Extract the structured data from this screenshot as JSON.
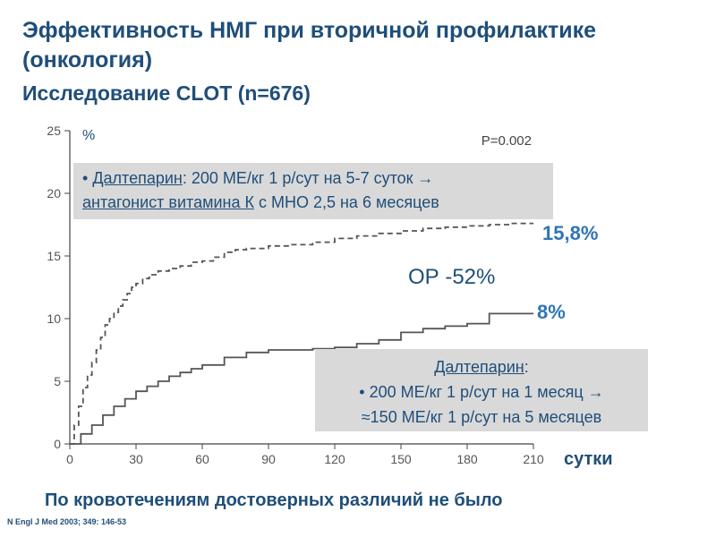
{
  "slide": {
    "title": "Эффективность НМГ при вторичной профилактике (онкология)",
    "subtitle": "Исследование CLOT (n=676)",
    "footer_note": "По кровотечениям достоверных различий не было",
    "reference": "N Engl J Med 2003; 349: 146-53"
  },
  "boxes": {
    "top": {
      "bullet": "•",
      "drug": "Далтепарин",
      "rest1": ": 200 МЕ/кг 1 р/сут на 5-7 суток →",
      "underlined": "антагонист витамина К",
      "rest2": " с МНО 2,5 на 6 месяцев"
    },
    "bottom": {
      "drug": "Далтепарин",
      "colon": ":",
      "line2": "•   200 МЕ/кг 1 р/сут на 1 месяц →",
      "line3": "≈150 МЕ/кг 1 р/сут на 5 месяцев"
    }
  },
  "annotations": {
    "oac_rate": "15,8%",
    "lmwh_rate": "8%",
    "relative_risk": "ОР -52%",
    "x_unit": "сутки"
  },
  "chart_data": {
    "type": "line",
    "ylabel": "%",
    "xlabel": "сутки",
    "p_value": "P=0.002",
    "xlim": [
      0,
      210
    ],
    "ylim": [
      0,
      25
    ],
    "x_ticks": [
      0,
      30,
      60,
      90,
      120,
      150,
      180,
      210
    ],
    "y_ticks": [
      0,
      5,
      10,
      15,
      20,
      25
    ],
    "series": [
      {
        "style": "dashed",
        "color": "#555555",
        "x": [
          0,
          2,
          4,
          6,
          8,
          10,
          12,
          14,
          16,
          18,
          20,
          22,
          24,
          26,
          28,
          30,
          33,
          36,
          40,
          45,
          50,
          55,
          60,
          65,
          70,
          75,
          80,
          90,
          100,
          110,
          120,
          130,
          140,
          150,
          160,
          170,
          180,
          190,
          200,
          210
        ],
        "y": [
          0,
          1.5,
          3,
          4.5,
          5.5,
          6.5,
          7.5,
          8.5,
          9.5,
          10,
          10.5,
          11,
          11.5,
          12,
          12.5,
          12.8,
          13.2,
          13.5,
          13.8,
          14,
          14.2,
          14.5,
          14.6,
          14.9,
          15.3,
          15.5,
          15.6,
          15.8,
          15.9,
          16.1,
          16.4,
          16.6,
          16.8,
          17,
          17.2,
          17.3,
          17.4,
          17.5,
          17.6,
          17.6
        ]
      },
      {
        "style": "solid",
        "color": "#555555",
        "x": [
          0,
          5,
          10,
          15,
          20,
          25,
          30,
          35,
          40,
          45,
          50,
          55,
          60,
          70,
          80,
          90,
          100,
          110,
          120,
          130,
          140,
          150,
          160,
          170,
          180,
          190,
          200,
          210
        ],
        "y": [
          0,
          0.8,
          1.5,
          2.3,
          3,
          3.6,
          4.2,
          4.6,
          5,
          5.4,
          5.7,
          6,
          6.3,
          6.9,
          7.3,
          7.5,
          7.5,
          7.6,
          7.7,
          8,
          8.3,
          8.9,
          9.2,
          9.4,
          9.6,
          10.4,
          10.4,
          10.4
        ]
      }
    ]
  }
}
